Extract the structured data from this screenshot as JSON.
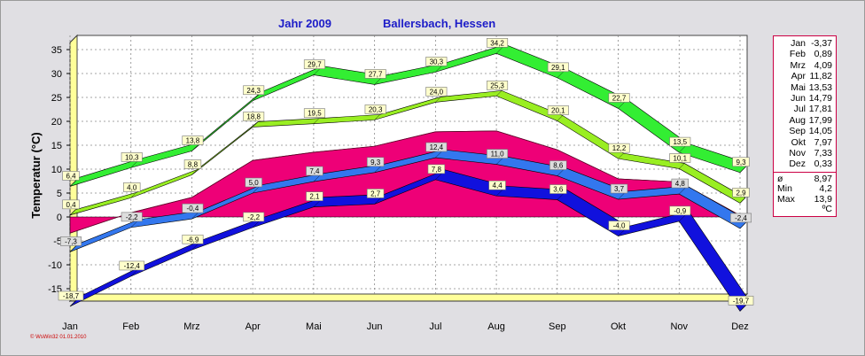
{
  "chart_data": {
    "type": "area",
    "title": "Jahr  2009",
    "subtitle": "Ballersbach, Hessen",
    "ylabel": "Temperatur  (°C)",
    "xlabel": "",
    "ylim": [
      -18,
      36
    ],
    "yticks": [
      35,
      30,
      25,
      20,
      15,
      10,
      5,
      0,
      -5,
      -10,
      -15
    ],
    "grid": true,
    "categories": [
      "Jan",
      "Feb",
      "Mrz",
      "Apr",
      "Mai",
      "Jun",
      "Jul",
      "Aug",
      "Sep",
      "Okt",
      "Nov",
      "Dez"
    ],
    "series": [
      {
        "role": "max-temperature",
        "color": "#33ee33",
        "values": [
          6.4,
          10.3,
          13.8,
          24.3,
          29.7,
          27.7,
          30.3,
          34.2,
          29.1,
          22.7,
          13.5,
          9.3
        ],
        "labels": [
          "6,4",
          "10,3",
          "13,8",
          "24,3",
          "29,7",
          "27,7",
          "30,3",
          "34,2",
          "29,1",
          "22,7",
          "13,5",
          "9,3"
        ]
      },
      {
        "role": "mean-max-temperature",
        "color": "#99ee22",
        "values": [
          0.4,
          4.0,
          8.8,
          18.8,
          19.5,
          20.3,
          24.0,
          25.3,
          20.1,
          12.2,
          10.1,
          2.9
        ],
        "labels": [
          "0,4",
          "4,0",
          "8,8",
          "18,8",
          "19,5",
          "20,3",
          "24,0",
          "25,3",
          "20,1",
          "12,2",
          "10,1",
          "2,9"
        ]
      },
      {
        "role": "mean-temperature",
        "color": "#ee0077",
        "values": [
          -3.37,
          0.89,
          4.09,
          11.82,
          13.53,
          14.79,
          17.81,
          17.99,
          14.05,
          7.97,
          7.33,
          0.33
        ]
      },
      {
        "role": "mean-min-temperature",
        "color": "#3377ee",
        "values": [
          -7.3,
          -2.2,
          -0.4,
          5.0,
          7.4,
          9.3,
          12.4,
          11.0,
          8.6,
          3.7,
          4.8,
          -2.4
        ],
        "labels": [
          "-7,3",
          "-2,2",
          "-0,4",
          "5,0",
          "7,4",
          "9,3",
          "12,4",
          "11,0",
          "8,6",
          "3,7",
          "4,8",
          "-2,4"
        ]
      },
      {
        "role": "min-temperature",
        "color": "#1111dd",
        "values": [
          -18.7,
          -12.4,
          -6.9,
          -2.2,
          2.1,
          2.7,
          7.8,
          4.4,
          3.6,
          -4.0,
          -0.9,
          -19.7
        ],
        "labels": [
          "-18,7",
          "-12,4",
          "-6,9",
          "-2,2",
          "2,1",
          "2,7",
          "7,8",
          "4,4",
          "3,6",
          "-4,0",
          "-0,9",
          "-19,7"
        ]
      }
    ]
  },
  "legend": {
    "months": [
      {
        "m": "Jan",
        "v": "-3,37"
      },
      {
        "m": "Feb",
        "v": "0,89"
      },
      {
        "m": "Mrz",
        "v": "4,09"
      },
      {
        "m": "Apr",
        "v": "11,82"
      },
      {
        "m": "Mai",
        "v": "13,53"
      },
      {
        "m": "Jun",
        "v": "14,79"
      },
      {
        "m": "Jul",
        "v": "17,81"
      },
      {
        "m": "Aug",
        "v": "17,99"
      },
      {
        "m": "Sep",
        "v": "14,05"
      },
      {
        "m": "Okt",
        "v": "7,97"
      },
      {
        "m": "Nov",
        "v": "7,33"
      },
      {
        "m": "Dez",
        "v": "0,33"
      }
    ],
    "stats": [
      {
        "k": "ø",
        "v": "8,97"
      },
      {
        "k": "Min",
        "v": "4,2"
      },
      {
        "k": "Max",
        "v": "13,9"
      }
    ],
    "unit": "ºC"
  },
  "credit": "© WsWin32  01.01.2010"
}
